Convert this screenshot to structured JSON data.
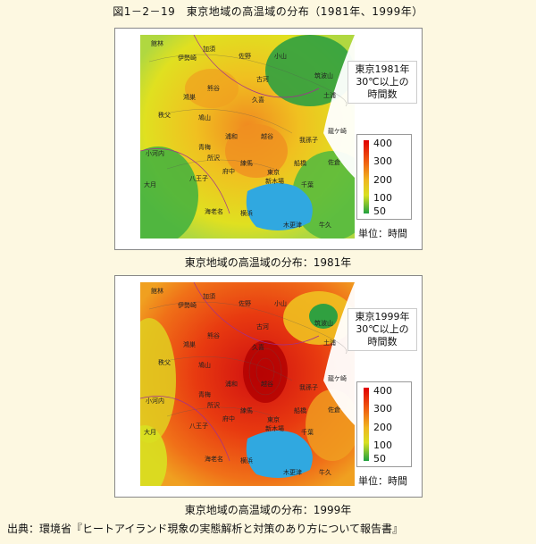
{
  "figure_title": "図1－2－19　東京地域の高温域の分布（1981年、1999年）",
  "panels": [
    {
      "year_label": [
        "東京1981年",
        "30℃以上の",
        "時間数"
      ],
      "caption": "東京地域の高温域の分布：1981年",
      "legend": {
        "ticks": [
          "400",
          "300",
          "200",
          "100",
          "50"
        ],
        "unit": "単位：時間"
      },
      "places": [
        "館林",
        "加須",
        "佐野",
        "小山",
        "伊勢崎",
        "熊谷",
        "古河",
        "筑波山",
        "土浦",
        "鴻巣",
        "久喜",
        "秩父",
        "鳩山",
        "浦和",
        "越谷",
        "龍ケ崎",
        "小河内",
        "青梅",
        "所沢",
        "府中",
        "練馬",
        "東京",
        "船橋",
        "我孫子",
        "佐倉",
        "大月",
        "八王子",
        "横浜",
        "新木場",
        "千葉",
        "海老名",
        "木更津",
        "牛久"
      ]
    },
    {
      "year_label": [
        "東京1999年",
        "30℃以上の",
        "時間数"
      ],
      "caption": "東京地域の高温域の分布：1999年",
      "legend": {
        "ticks": [
          "400",
          "300",
          "200",
          "100",
          "50"
        ],
        "unit": "単位：時間"
      },
      "places": [
        "館林",
        "加須",
        "佐野",
        "小山",
        "伊勢崎",
        "熊谷",
        "古河",
        "筑波山",
        "土浦",
        "鴻巣",
        "久喜",
        "秩父",
        "鳩山",
        "浦和",
        "越谷",
        "龍ケ崎",
        "小河内",
        "青梅",
        "所沢",
        "府中",
        "練馬",
        "東京",
        "船橋",
        "我孫子",
        "佐倉",
        "大月",
        "八王子",
        "横浜",
        "新木場",
        "千葉",
        "海老名",
        "木更津",
        "牛久"
      ]
    }
  ],
  "source": "出典：環境省『ヒートアイランド現象の実態解析と対策のあり方について報告書』",
  "colors": {
    "high": "#e00000",
    "mid": "#f0b820",
    "low": "#20a040",
    "sea": "#30a8e0",
    "background": "#fdf8e1"
  }
}
